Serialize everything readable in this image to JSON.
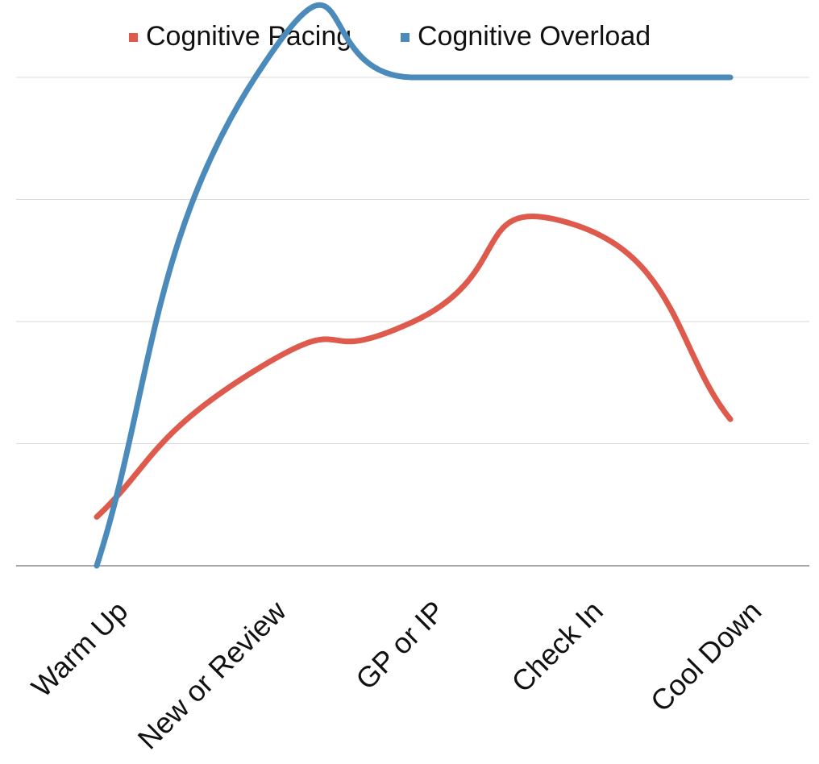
{
  "chart_data": {
    "type": "line",
    "smooth": true,
    "categories": [
      "Warm Up",
      "New or Review",
      "GP or IP",
      "Check In",
      "Cool Down"
    ],
    "ylim": [
      0,
      4
    ],
    "grid": true,
    "show_y_tick_labels": false,
    "legend_position": "top-center",
    "series": [
      {
        "name": "Cognitive Pacing",
        "color": "#dd5a4c",
        "values": [
          0.4,
          1.6,
          2.0,
          2.8,
          1.2
        ]
      },
      {
        "name": "Cognitive Overload",
        "color": "#4a8bbb",
        "values": [
          0.0,
          4.0,
          4.0,
          4.0,
          4.0
        ]
      }
    ],
    "gridline_color": "#d9d9d9",
    "axis_color": "#888888"
  }
}
